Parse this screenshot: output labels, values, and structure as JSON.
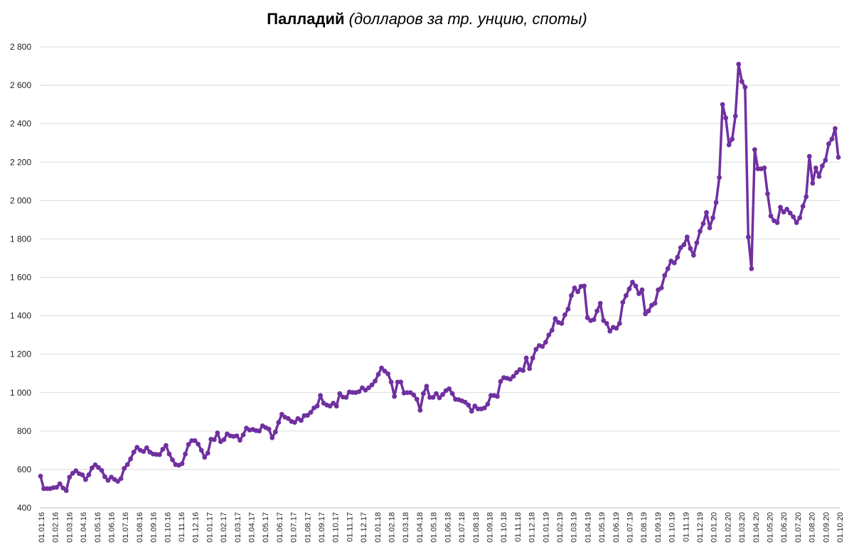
{
  "chart_data": {
    "type": "line",
    "title": "Палладий",
    "subtitle": "(долларов за тр. унцию, споты)",
    "xlabel": "",
    "ylabel": "",
    "ylim": [
      400,
      2800
    ],
    "yticks": [
      400,
      600,
      800,
      1000,
      1200,
      1400,
      1600,
      1800,
      2000,
      2200,
      2400,
      2600,
      2800
    ],
    "ytick_labels": [
      "400",
      "600",
      "800",
      "1 000",
      "1 200",
      "1 400",
      "1 600",
      "1 800",
      "2 000",
      "2 200",
      "2 400",
      "2 600",
      "2 800"
    ],
    "xtick_labels": [
      "01.01.16",
      "01.02.16",
      "01.03.16",
      "01.04.16",
      "01.05.16",
      "01.06.16",
      "01.07.16",
      "01.08.16",
      "01.09.16",
      "01.10.16",
      "01.11.16",
      "01.12.16",
      "01.01.17",
      "01.02.17",
      "01.03.17",
      "01.04.17",
      "01.05.17",
      "01.06.17",
      "01.07.17",
      "01.08.17",
      "01.09.17",
      "01.10.17",
      "01.11.17",
      "01.12.17",
      "01.01.18",
      "01.02.18",
      "01.03.18",
      "01.04.18",
      "01.05.18",
      "01.06.18",
      "01.07.18",
      "01.08.18",
      "01.09.18",
      "01.10.18",
      "01.11.18",
      "01.12.18",
      "01.01.19",
      "01.02.19",
      "01.03.19",
      "01.04.19",
      "01.05.19",
      "01.06.19",
      "01.07.19",
      "01.08.19",
      "01.09.19",
      "01.10.19",
      "01.11.19",
      "01.12.19",
      "01.01.20",
      "01.02.20",
      "01.03.20",
      "01.04.20",
      "01.05.20",
      "01.06.20",
      "01.07.20",
      "01.08.20",
      "01.09.20",
      "01.10.20"
    ],
    "grid": true,
    "legend": "none",
    "color": "#7030a0",
    "series": [
      {
        "values": [
          565,
          500,
          500,
          500,
          505,
          507,
          525,
          503,
          490,
          560,
          580,
          593,
          578,
          572,
          547,
          572,
          608,
          624,
          610,
          595,
          562,
          543,
          560,
          548,
          538,
          552,
          605,
          625,
          655,
          690,
          715,
          700,
          693,
          713,
          690,
          680,
          678,
          677,
          705,
          725,
          680,
          650,
          625,
          622,
          630,
          680,
          730,
          750,
          750,
          732,
          700,
          663,
          685,
          757,
          755,
          790,
          745,
          755,
          785,
          775,
          772,
          775,
          752,
          780,
          815,
          805,
          808,
          802,
          800,
          827,
          818,
          810,
          765,
          795,
          845,
          887,
          872,
          865,
          850,
          845,
          865,
          855,
          880,
          882,
          897,
          920,
          930,
          985,
          945,
          935,
          930,
          945,
          930,
          995,
          977,
          975,
          1003,
          1001,
          1000,
          1005,
          1025,
          1013,
          1025,
          1040,
          1060,
          1095,
          1128,
          1112,
          1098,
          1055,
          980,
          1055,
          1055,
          998,
          1000,
          1000,
          988,
          965,
          908,
          995,
          1033,
          975,
          975,
          995,
          973,
          990,
          1010,
          1020,
          995,
          965,
          963,
          957,
          950,
          935,
          903,
          930,
          915,
          915,
          920,
          940,
          985,
          985,
          980,
          1058,
          1078,
          1075,
          1070,
          1085,
          1105,
          1120,
          1115,
          1180,
          1125,
          1180,
          1225,
          1245,
          1240,
          1262,
          1300,
          1325,
          1385,
          1365,
          1360,
          1405,
          1435,
          1505,
          1545,
          1525,
          1553,
          1555,
          1390,
          1375,
          1380,
          1425,
          1465,
          1375,
          1360,
          1320,
          1340,
          1335,
          1360,
          1470,
          1505,
          1540,
          1575,
          1555,
          1515,
          1535,
          1410,
          1425,
          1455,
          1465,
          1535,
          1545,
          1610,
          1645,
          1685,
          1675,
          1705,
          1755,
          1770,
          1810,
          1750,
          1715,
          1780,
          1840,
          1880,
          1938,
          1858,
          1910,
          1990,
          2120,
          2500,
          2430,
          2290,
          2320,
          2440,
          2710,
          2620,
          2590,
          1810,
          1645,
          2265,
          2165,
          2165,
          2170,
          2035,
          1920,
          1895,
          1885,
          1965,
          1940,
          1955,
          1935,
          1915,
          1885,
          1910,
          1970,
          2020,
          2230,
          2090,
          2170,
          2125,
          2180,
          2210,
          2295,
          2320,
          2375,
          2225
        ]
      }
    ]
  }
}
